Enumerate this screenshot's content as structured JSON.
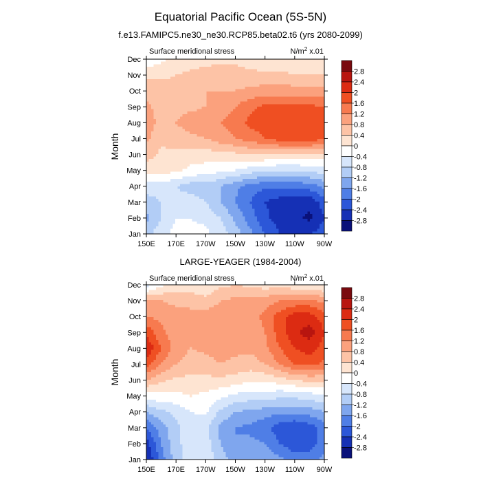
{
  "figure": {
    "title": "Equatorial Pacific Ocean (5S-5N)"
  },
  "colorbar": {
    "levels": [
      "2.8",
      "2.4",
      "2",
      "1.6",
      "1.2",
      "0.8",
      "0.4",
      "0",
      "-0.4",
      "-0.8",
      "-1.2",
      "-1.6",
      "-2",
      "-2.4",
      "-2.8"
    ],
    "colors": [
      "#7a0a0f",
      "#b8150f",
      "#dc2b12",
      "#ef4f22",
      "#f77a4f",
      "#fba17d",
      "#fdc3a6",
      "#fee4d2",
      "#ffffff",
      "#d7e6fb",
      "#b2cdf6",
      "#7fa6ee",
      "#4f7ee6",
      "#2c57d8",
      "#1530b5",
      "#0a117a"
    ]
  },
  "chart_data": [
    {
      "type": "heatmap",
      "title": "f.e13.FAMIPC5.ne30_ne30.RCP85.beta02.t6 (yrs 2080-2099)",
      "left_label": "Surface meridional stress",
      "right_label_prefix": "N/m",
      "right_label_sup": "2",
      "right_label_suffix": " x.01",
      "xlabel": "",
      "ylabel": "Month",
      "x_ticks": [
        "150E",
        "170E",
        "170W",
        "150W",
        "130W",
        "110W",
        "90W"
      ],
      "y_ticks": [
        "Jan",
        "Feb",
        "Mar",
        "Apr",
        "May",
        "Jun",
        "Jul",
        "Aug",
        "Sep",
        "Oct",
        "Nov",
        "Dec"
      ],
      "x": [
        150,
        160,
        170,
        180,
        190,
        200,
        210,
        220,
        230,
        240,
        250,
        260,
        270
      ],
      "z": [
        [
          -1.0,
          -0.5,
          -0.3,
          -0.3,
          -0.3,
          -0.6,
          -1.0,
          -1.5,
          -2.0,
          -2.4,
          -2.4,
          -2.4,
          -2.2
        ],
        [
          -1.3,
          -0.8,
          -0.4,
          -0.4,
          -0.5,
          -0.8,
          -1.3,
          -1.8,
          -2.3,
          -2.6,
          -2.7,
          -2.9,
          -2.4
        ],
        [
          -1.0,
          -0.8,
          -0.6,
          -0.6,
          -0.8,
          -1.2,
          -1.6,
          -2.0,
          -2.4,
          -2.6,
          -2.6,
          -2.7,
          -2.2
        ],
        [
          -0.6,
          -0.6,
          -0.8,
          -1.0,
          -1.0,
          -1.2,
          -1.5,
          -1.8,
          -1.9,
          -1.9,
          -1.9,
          -1.8,
          -1.5
        ],
        [
          0.1,
          0.2,
          0.1,
          -0.1,
          -0.2,
          -0.3,
          -0.4,
          -0.6,
          -0.7,
          -0.8,
          -0.8,
          -0.7,
          -0.6
        ],
        [
          0.6,
          0.3,
          0.3,
          0.2,
          0.2,
          0.3,
          0.3,
          0.4,
          0.4,
          0.4,
          0.4,
          0.3,
          0.3
        ],
        [
          0.9,
          0.5,
          0.6,
          0.7,
          0.8,
          1.0,
          1.2,
          1.4,
          1.6,
          1.8,
          1.8,
          1.9,
          1.6
        ],
        [
          1.1,
          0.6,
          0.8,
          1.0,
          1.1,
          1.2,
          1.4,
          1.7,
          1.8,
          2.0,
          2.0,
          2.0,
          1.8
        ],
        [
          0.9,
          0.6,
          0.7,
          0.7,
          0.8,
          0.9,
          1.2,
          1.5,
          1.7,
          1.7,
          1.7,
          1.7,
          1.6
        ],
        [
          0.6,
          0.6,
          0.6,
          0.7,
          0.8,
          0.8,
          0.8,
          0.9,
          1.0,
          1.0,
          1.0,
          1.0,
          0.9
        ],
        [
          0.3,
          0.3,
          0.4,
          0.5,
          0.6,
          0.7,
          0.6,
          0.5,
          0.5,
          0.5,
          0.4,
          0.4,
          0.4
        ],
        [
          -0.3,
          -0.1,
          0.1,
          0.2,
          0.2,
          0.3,
          0.3,
          0.2,
          0.1,
          0.1,
          0.1,
          0.0,
          0.0
        ]
      ]
    },
    {
      "type": "heatmap",
      "title": "LARGE-YEAGER (1984-2004)",
      "left_label": "Surface meridional stress",
      "right_label_prefix": "N/m",
      "right_label_sup": "2",
      "right_label_suffix": " x.01",
      "xlabel": "",
      "ylabel": "Month",
      "x_ticks": [
        "150E",
        "170E",
        "170W",
        "150W",
        "130W",
        "110W",
        "90W"
      ],
      "y_ticks": [
        "Jan",
        "Feb",
        "Mar",
        "Apr",
        "May",
        "Jun",
        "Jul",
        "Aug",
        "Sep",
        "Oct",
        "Nov",
        "Dec"
      ],
      "x": [
        150,
        160,
        170,
        180,
        190,
        200,
        210,
        220,
        230,
        240,
        250,
        260,
        270
      ],
      "z": [
        [
          -2.9,
          -1.8,
          -1.0,
          -0.6,
          -0.5,
          -1.0,
          -1.4,
          -1.3,
          -1.3,
          -1.5,
          -1.8,
          -1.8,
          -1.5
        ],
        [
          -2.6,
          -1.6,
          -0.9,
          -0.6,
          -0.6,
          -1.2,
          -1.6,
          -1.5,
          -1.6,
          -2.0,
          -2.3,
          -2.2,
          -1.8
        ],
        [
          -2.0,
          -1.4,
          -0.9,
          -0.6,
          -0.7,
          -1.3,
          -1.6,
          -1.7,
          -1.9,
          -2.2,
          -2.4,
          -2.2,
          -1.8
        ],
        [
          -1.2,
          -0.9,
          -0.7,
          -0.4,
          -0.3,
          -0.9,
          -1.2,
          -1.3,
          -1.4,
          -1.5,
          -1.5,
          -1.4,
          -1.2
        ],
        [
          -0.2,
          -0.1,
          -0.1,
          0.0,
          -0.1,
          -0.3,
          -0.5,
          -0.6,
          -0.6,
          -0.7,
          -0.7,
          -0.6,
          -0.5
        ],
        [
          0.8,
          0.5,
          0.3,
          0.3,
          0.3,
          0.3,
          0.2,
          0.1,
          0.1,
          0.2,
          0.4,
          0.5,
          0.5
        ],
        [
          1.8,
          1.2,
          0.8,
          0.6,
          0.6,
          0.8,
          0.7,
          0.6,
          0.8,
          1.2,
          1.6,
          1.7,
          1.5
        ],
        [
          2.4,
          1.6,
          1.0,
          0.8,
          0.9,
          1.0,
          0.9,
          0.9,
          1.1,
          1.6,
          2.0,
          2.2,
          1.8
        ],
        [
          1.9,
          1.3,
          1.0,
          0.8,
          0.9,
          1.1,
          1.0,
          1.0,
          1.2,
          1.8,
          2.3,
          2.6,
          2.0
        ],
        [
          1.2,
          1.1,
          1.0,
          1.0,
          1.0,
          1.1,
          1.0,
          1.0,
          1.3,
          1.8,
          2.2,
          2.2,
          1.8
        ],
        [
          0.8,
          0.8,
          0.7,
          0.6,
          0.5,
          0.8,
          0.9,
          0.9,
          1.0,
          1.2,
          1.3,
          1.3,
          1.1
        ],
        [
          -0.6,
          -0.1,
          0.2,
          0.2,
          0.1,
          0.3,
          0.4,
          0.3,
          0.2,
          0.2,
          0.1,
          0.0,
          -0.1
        ]
      ]
    }
  ]
}
